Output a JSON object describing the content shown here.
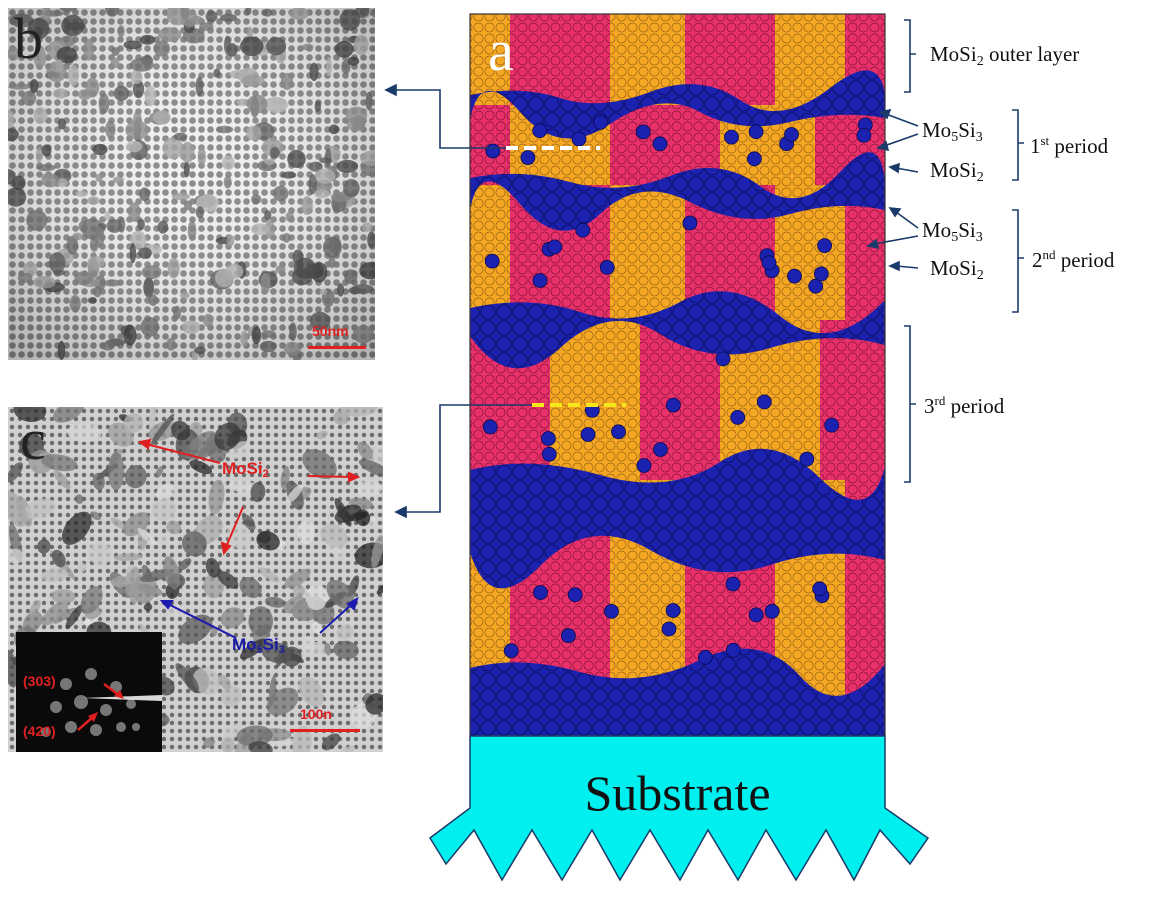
{
  "panels": {
    "a": "a",
    "b": "b",
    "c": "c"
  },
  "scale_bars": {
    "b": "50nm",
    "c": "100n"
  },
  "diffraction": {
    "spot_1": "(303)",
    "spot_2": "(420)"
  },
  "tem_c_labels": {
    "phase_red": {
      "base": "MoSi",
      "sub": "2"
    },
    "phase_blue": {
      "base": "Mo",
      "sub1": "5",
      "mid": "Si",
      "sub2": "3"
    }
  },
  "right_labels": {
    "outer": {
      "base": "MoSi",
      "sub": "2",
      "rest": " outer layer"
    },
    "mo5si3": {
      "base": "Mo",
      "sub1": "5",
      "mid": "Si",
      "sub2": "3"
    },
    "mosi2": {
      "base": "MoSi",
      "sub": "2"
    },
    "period1": {
      "num": "1",
      "sup": "st",
      "rest": " period"
    },
    "period2": {
      "num": "2",
      "sup": "nd",
      "rest": " period"
    },
    "period3": {
      "num": "3",
      "sup": "rd",
      "rest": " period"
    }
  },
  "substrate": "Substrate",
  "colors": {
    "mosi2_orange": "#f5a623",
    "mosi2_red": "#e8306a",
    "mo5si3_blue": "#1c22b0",
    "substrate": "#00f0f0",
    "annotation_blue": "#1a3a6a",
    "arrow_red": "#e02020"
  }
}
